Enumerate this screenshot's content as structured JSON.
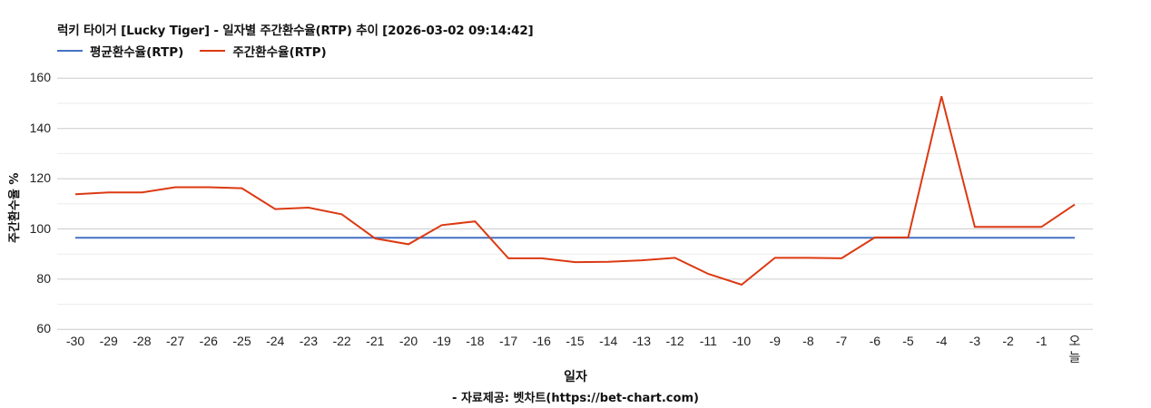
{
  "header": {
    "title": "럭키 타이거 [Lucky Tiger] - 일자별 주간환수율(RTP) 추이 [2026-03-02 09:14:42]"
  },
  "legend": {
    "items": [
      {
        "label": "평균환수율(RTP)",
        "color": "#4472C4"
      },
      {
        "label": "주간환수율(RTP)",
        "color": "#DC3912"
      }
    ]
  },
  "axes": {
    "ylabel": "주간환수율 %",
    "xlabel": "일자",
    "yticks": [
      "160",
      "140",
      "120",
      "100",
      "80",
      "60"
    ],
    "xticks": [
      "-30",
      "-29",
      "-28",
      "-27",
      "-26",
      "-25",
      "-24",
      "-23",
      "-22",
      "-21",
      "-20",
      "-19",
      "-18",
      "-17",
      "-16",
      "-15",
      "-14",
      "-13",
      "-12",
      "-11",
      "-10",
      "-9",
      "-8",
      "-7",
      "-6",
      "-5",
      "-4",
      "-3",
      "-2",
      "-1",
      "오늘"
    ]
  },
  "footer": {
    "source": "- 자료제공: 벳차트(https://bet-chart.com)"
  },
  "chart_data": {
    "type": "line",
    "title": "럭키 타이거 [Lucky Tiger] - 일자별 주간환수율(RTP) 추이 [2026-03-02 09:14:42]",
    "xlabel": "일자",
    "ylabel": "주간환수율 %",
    "ylim": [
      60,
      160
    ],
    "yticks": [
      60,
      80,
      100,
      120,
      140,
      160
    ],
    "minor_gridlines": [
      70,
      90,
      110,
      130,
      150
    ],
    "grid": true,
    "legend_position": "top-left",
    "categories": [
      "-30",
      "-29",
      "-28",
      "-27",
      "-26",
      "-25",
      "-24",
      "-23",
      "-22",
      "-21",
      "-20",
      "-19",
      "-18",
      "-17",
      "-16",
      "-15",
      "-14",
      "-13",
      "-12",
      "-11",
      "-10",
      "-9",
      "-8",
      "-7",
      "-6",
      "-5",
      "-4",
      "-3",
      "-2",
      "-1",
      "오늘"
    ],
    "series": [
      {
        "name": "평균환수율(RTP)",
        "color": "#4472C4",
        "values": [
          96.5,
          96.5,
          96.5,
          96.5,
          96.5,
          96.5,
          96.5,
          96.5,
          96.5,
          96.5,
          96.5,
          96.5,
          96.5,
          96.5,
          96.5,
          96.5,
          96.5,
          96.5,
          96.5,
          96.5,
          96.5,
          96.5,
          96.5,
          96.5,
          96.5,
          96.5,
          96.5,
          96.5,
          96.5,
          96.5,
          96.5
        ]
      },
      {
        "name": "주간환수율(RTP)",
        "color": "#DC3912",
        "values": [
          113.8,
          114.5,
          114.5,
          116.6,
          116.6,
          116.2,
          107.9,
          108.5,
          105.8,
          96.2,
          93.9,
          101.5,
          103.0,
          88.3,
          88.3,
          86.8,
          86.9,
          87.5,
          88.5,
          82.1,
          77.8,
          88.5,
          88.5,
          88.3,
          96.6,
          96.6,
          152.8,
          100.8,
          100.8,
          100.8,
          109.7
        ]
      }
    ]
  }
}
